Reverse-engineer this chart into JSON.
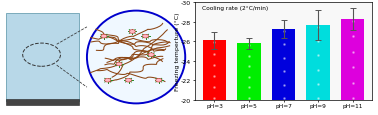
{
  "categories": [
    "pH=3",
    "pH=5",
    "pH=7",
    "pH=9",
    "pH=11"
  ],
  "values": [
    -26.1,
    -25.8,
    -27.3,
    -27.7,
    -28.3
  ],
  "errors": [
    0.85,
    0.55,
    0.9,
    1.5,
    1.1
  ],
  "bar_colors": [
    "#ff0000",
    "#00ee00",
    "#0000dd",
    "#00dddd",
    "#dd00dd"
  ],
  "ylabel": "Freezing temperture (°C)",
  "annotation": "Cooling rate (2°C/min)",
  "ymin": -30,
  "ymax": -20,
  "yticks": [
    -30,
    -28,
    -26,
    -24,
    -22,
    -20
  ],
  "bg_color": "#ffffff",
  "left_bg": "#add8e6",
  "substrate_dark": "#555555",
  "ellipse_color": "#0000cc"
}
